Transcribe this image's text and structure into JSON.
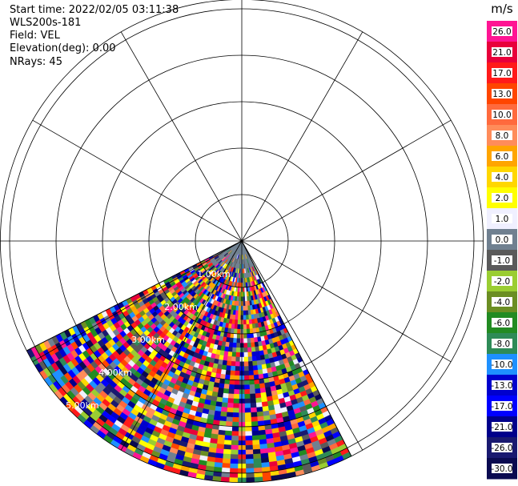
{
  "info": {
    "start_time": "Start time: 2022/02/05 03:11:38",
    "instrument": "WLS200s-181",
    "field": "Field: VEL",
    "elevation": "Elevation(deg): 0.00",
    "nrays": "NRays: 45"
  },
  "chart_data": {
    "type": "heatmap",
    "projection": "polar-ppi",
    "title": "",
    "range_rings_km": [
      1,
      2,
      3,
      4,
      5
    ],
    "range_ring_labels": [
      "1.00km",
      "2.00km",
      "3.00km",
      "4.00km",
      "5.00km"
    ],
    "max_range_km": 5.2,
    "azimuth_gridlines_deg": [
      0,
      30,
      60,
      90,
      120,
      150,
      180,
      210,
      240,
      270,
      300,
      330
    ],
    "sector": {
      "azimuth_start_deg": 153,
      "azimuth_end_deg": 243,
      "n_rays": 45
    },
    "colorbar": {
      "unit": "m/s",
      "tick_labels": [
        "26.0",
        "21.0",
        "17.0",
        "13.0",
        "10.0",
        "8.0",
        "6.0",
        "4.0",
        "2.0",
        "1.0",
        "0.0",
        "-1.0",
        "-2.0",
        "-4.0",
        "-6.0",
        "-8.0",
        "-10.0",
        "-13.0",
        "-17.0",
        "-21.0",
        "-26.0",
        "-30.0"
      ],
      "colors": [
        "#ff1493",
        "#e8003a",
        "#ff1a1a",
        "#ff4500",
        "#ff6a3d",
        "#ff8c5a",
        "#ffa500",
        "#ffd700",
        "#ffff00",
        "#f0f0ff",
        "#708090",
        "#5a5a5a",
        "#9acd32",
        "#6b8e23",
        "#228b22",
        "#2e8b57",
        "#1e90ff",
        "#0000cd",
        "#0000ff",
        "#00008b",
        "#191970",
        "#0a0a50"
      ]
    }
  }
}
